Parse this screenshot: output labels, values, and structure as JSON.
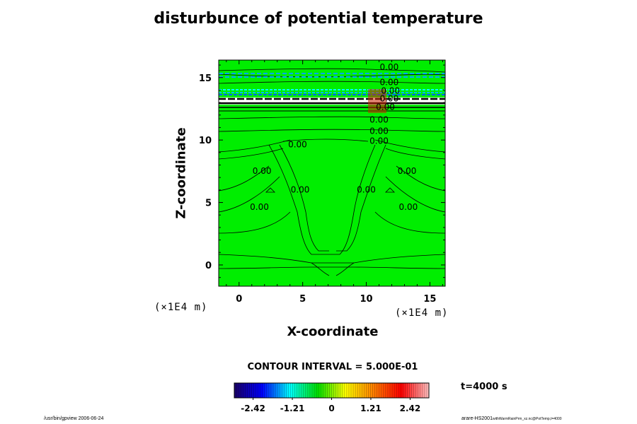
{
  "chart_data": {
    "type": "heatmap",
    "title": "disturbunce of potential temperature",
    "xlabel": "X-coordinate",
    "ylabel": "Z-coordinate",
    "x_unit": "(×1E4 m)",
    "y_unit": "(×1E4 m)",
    "xlim": [
      -1.6,
      16.2
    ],
    "ylim": [
      -1.7,
      16.4
    ],
    "x_ticks": [
      0,
      5,
      10,
      15
    ],
    "y_ticks": [
      0,
      5,
      10,
      15
    ],
    "x_tick_labels": [
      "0",
      "5",
      "10",
      "15"
    ],
    "y_tick_labels": [
      "0",
      "5",
      "10",
      "15"
    ],
    "contour_interval_label": "CONTOUR INTERVAL = 5.000E-01",
    "contour_labels": [
      {
        "text": "0.00",
        "x": 11.8,
        "y": 15.8
      },
      {
        "text": "0.00",
        "x": 11.8,
        "y": 14.6
      },
      {
        "text": "0.00",
        "x": 11.9,
        "y": 13.9
      },
      {
        "text": "0.00",
        "x": 11.8,
        "y": 13.3
      },
      {
        "text": "0.00",
        "x": 11.5,
        "y": 12.6
      },
      {
        "text": "0.00",
        "x": 11.0,
        "y": 11.6
      },
      {
        "text": "0.00",
        "x": 11.0,
        "y": 10.7
      },
      {
        "text": "0.00",
        "x": 11.0,
        "y": 9.9
      },
      {
        "text": "0.00",
        "x": 4.6,
        "y": 9.6
      },
      {
        "text": "0.00",
        "x": 1.8,
        "y": 7.5
      },
      {
        "text": "0.00",
        "x": 13.2,
        "y": 7.5
      },
      {
        "text": "0.00",
        "x": 4.8,
        "y": 6.0
      },
      {
        "text": "0.00",
        "x": 10.0,
        "y": 6.0
      },
      {
        "text": "0.00",
        "x": 1.6,
        "y": 4.6
      },
      {
        "text": "0.00",
        "x": 13.3,
        "y": 4.6
      }
    ],
    "colorbar": {
      "range": [
        -3.0,
        3.0
      ],
      "tick_values": [
        -2.42,
        -1.21,
        0,
        1.21,
        2.42
      ],
      "tick_labels": [
        "-2.42",
        "-1.21",
        "0",
        "1.21",
        "2.42"
      ],
      "colors": [
        "#1a0066",
        "#0000ff",
        "#00ffff",
        "#00e000",
        "#ffff00",
        "#ff8000",
        "#ff0000",
        "#ffc0c0"
      ]
    },
    "time_label": "t=4000 s",
    "field_background_color": "#00ee00",
    "grid": false
  },
  "footer_left": "/usr/bin/gpview 2006-06-24",
  "footer_right_main": "arare-HS2001",
  "footer_right_small": "withWarmRainPrm_xz.nc@PotTemp,t=4000"
}
